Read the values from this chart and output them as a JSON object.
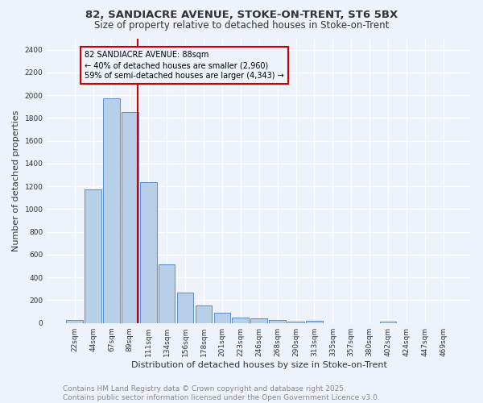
{
  "title_line1": "82, SANDIACRE AVENUE, STOKE-ON-TRENT, ST6 5BX",
  "title_line2": "Size of property relative to detached houses in Stoke-on-Trent",
  "xlabel": "Distribution of detached houses by size in Stoke-on-Trent",
  "ylabel": "Number of detached properties",
  "categories": [
    "22sqm",
    "44sqm",
    "67sqm",
    "89sqm",
    "111sqm",
    "134sqm",
    "156sqm",
    "178sqm",
    "201sqm",
    "223sqm",
    "246sqm",
    "268sqm",
    "290sqm",
    "313sqm",
    "335sqm",
    "357sqm",
    "380sqm",
    "402sqm",
    "424sqm",
    "447sqm",
    "469sqm"
  ],
  "values": [
    25,
    1170,
    1975,
    1855,
    1240,
    515,
    270,
    155,
    90,
    50,
    40,
    25,
    15,
    20,
    0,
    0,
    0,
    15,
    0,
    0,
    0
  ],
  "bar_color": "#b8cfe8",
  "bar_edge_color": "#5b8cc8",
  "background_color": "#eef2fb",
  "grid_color": "#ffffff",
  "vline_x": 3.43,
  "vline_color": "#cc0000",
  "annotation_text": "82 SANDIACRE AVENUE: 88sqm\n← 40% of detached houses are smaller (2,960)\n59% of semi-detached houses are larger (4,343) →",
  "annotation_box_color": "#cc0000",
  "annotation_text_color": "#000000",
  "ylim": [
    0,
    2500
  ],
  "yticks": [
    0,
    200,
    400,
    600,
    800,
    1000,
    1200,
    1400,
    1600,
    1800,
    2000,
    2200,
    2400
  ],
  "footer_line1": "Contains HM Land Registry data © Crown copyright and database right 2025.",
  "footer_line2": "Contains public sector information licensed under the Open Government Licence v3.0.",
  "title_fontsize": 9.5,
  "subtitle_fontsize": 8.5,
  "axis_label_fontsize": 8,
  "tick_fontsize": 6.5,
  "annot_fontsize": 7,
  "footer_fontsize": 6.5
}
